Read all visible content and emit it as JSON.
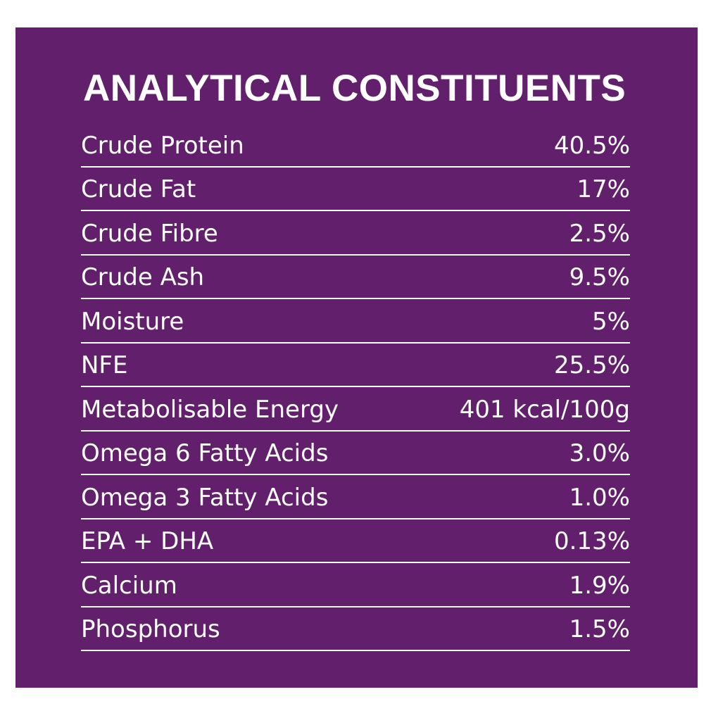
{
  "colors": {
    "panel_background": "#621f6c",
    "text": "#ffffff",
    "page_background": "#ffffff"
  },
  "title": "ANALYTICAL CONSTITUENTS",
  "rows": [
    {
      "label": "Crude Protein",
      "value": "40.5%"
    },
    {
      "label": "Crude Fat",
      "value": "17%"
    },
    {
      "label": "Crude Fibre",
      "value": "2.5%"
    },
    {
      "label": "Crude Ash",
      "value": "9.5%"
    },
    {
      "label": "Moisture",
      "value": "5%"
    },
    {
      "label": "NFE",
      "value": "25.5%"
    },
    {
      "label": "Metabolisable Energy",
      "value": "401 kcal/100g"
    },
    {
      "label": "Omega 6 Fatty Acids",
      "value": "3.0%"
    },
    {
      "label": "Omega 3 Fatty Acids",
      "value": "1.0%"
    },
    {
      "label": "EPA + DHA",
      "value": "0.13%"
    },
    {
      "label": "Calcium",
      "value": "1.9%"
    },
    {
      "label": "Phosphorus",
      "value": "1.5%"
    }
  ]
}
